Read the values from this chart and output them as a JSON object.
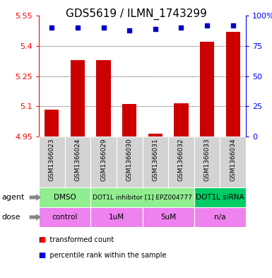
{
  "title": "GDS5619 / ILMN_1743299",
  "samples": [
    "GSM1366023",
    "GSM1366024",
    "GSM1366029",
    "GSM1366030",
    "GSM1366031",
    "GSM1366032",
    "GSM1366033",
    "GSM1366034"
  ],
  "bar_values": [
    5.085,
    5.33,
    5.33,
    5.11,
    4.965,
    5.115,
    5.42,
    5.47
  ],
  "percentile_values": [
    90,
    90,
    90,
    88,
    89,
    90,
    92,
    92
  ],
  "ymin": 4.95,
  "ymax": 5.55,
  "y_ticks": [
    4.95,
    5.1,
    5.25,
    5.4,
    5.55
  ],
  "y_tick_labels": [
    "4.95",
    "5.1",
    "5.25",
    "5.4",
    "5.55"
  ],
  "right_y_ticks": [
    0,
    25,
    50,
    75,
    100
  ],
  "right_y_labels": [
    "0",
    "25",
    "50",
    "75",
    "100%"
  ],
  "bar_color": "#cc0000",
  "dot_color": "#0000cc",
  "grid_lines": [
    5.1,
    5.25,
    5.4
  ],
  "agent_groups": [
    {
      "label": "DMSO",
      "start": 0,
      "end": 2,
      "color": "#90ee90"
    },
    {
      "label": "DOT1L inhibitor [1] EPZ004777",
      "start": 2,
      "end": 6,
      "color": "#90ee90"
    },
    {
      "label": "DOT1L siRNA",
      "start": 6,
      "end": 8,
      "color": "#00cc66"
    }
  ],
  "dose_groups": [
    {
      "label": "control",
      "start": 0,
      "end": 2,
      "color": "#ee82ee"
    },
    {
      "label": "1uM",
      "start": 2,
      "end": 4,
      "color": "#ee82ee"
    },
    {
      "label": "5uM",
      "start": 4,
      "end": 6,
      "color": "#ee82ee"
    },
    {
      "label": "n/a",
      "start": 6,
      "end": 8,
      "color": "#ee82ee"
    }
  ],
  "bar_width": 0.55,
  "title_fontsize": 11,
  "tick_fontsize": 8,
  "sample_fontsize": 6.5,
  "label_fontsize": 7.5,
  "legend_fontsize": 7
}
